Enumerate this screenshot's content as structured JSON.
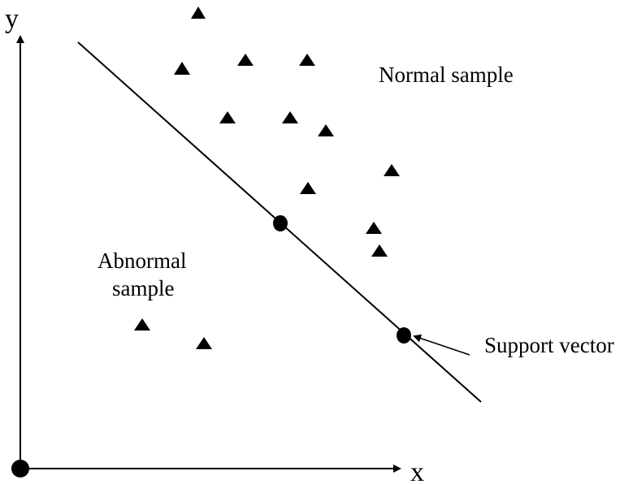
{
  "axes": {
    "x_label": "x",
    "y_label": "y"
  },
  "labels": {
    "normal": "Normal sample",
    "abnormal_line1": "Abnormal",
    "abnormal_line2": "sample",
    "support_vector": "Support vector"
  },
  "colors": {
    "ink": "#000000",
    "background": "#ffffff"
  },
  "marker_names": {
    "normal": "triangle",
    "abnormal": "triangle",
    "support_vector": "filled-circle",
    "origin": "filled-circle"
  }
}
